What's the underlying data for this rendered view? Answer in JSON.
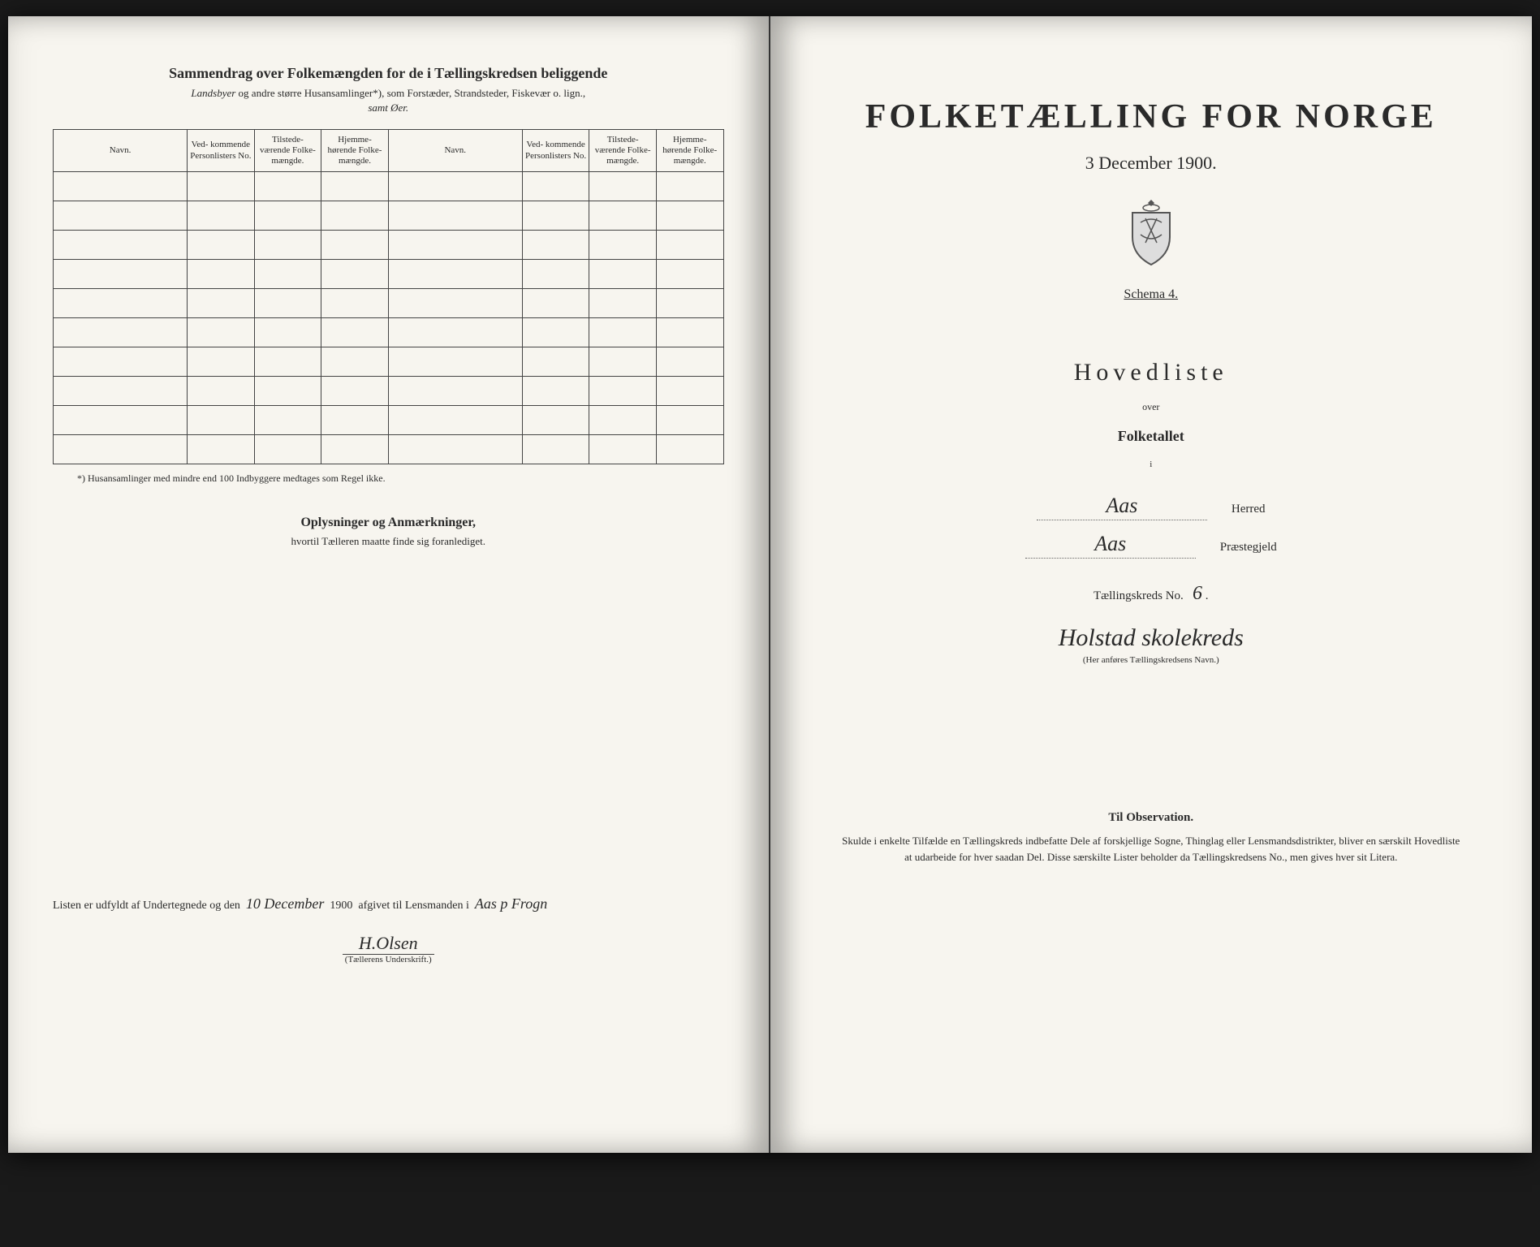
{
  "left": {
    "title": "Sammendrag over Folkemængden for de i Tællingskredsen beliggende",
    "subtitle_prefix_italic": "Landsbyer",
    "subtitle_rest": " og andre større Husansamlinger*), som Forstæder, Strandsteder, Fiskevær o. lign.,",
    "subtitle2": "samt Øer.",
    "columns": {
      "navn": "Navn.",
      "ved": "Ved-\nkommende\nPersonlisters\nNo.",
      "tilstede": "Tilstede-\nværende\nFolke-\nmængde.",
      "hjemme": "Hjemme-\nhørende\nFolke-\nmængde."
    },
    "row_count": 10,
    "footnote": "*) Husansamlinger med mindre end 100 Indbyggere medtages som Regel ikke.",
    "oplys_title": "Oplysninger og Anmærkninger,",
    "oplys_sub": "hvortil Tælleren maatte finde sig foranlediget.",
    "listen_prefix": "Listen er udfyldt af Undertegnede og den",
    "listen_date_hand": "10 December",
    "listen_year": "1900",
    "listen_mid": "afgivet til Lensmanden i",
    "listen_place_hand": "Aas p Frogn",
    "signature": "H.Olsen",
    "sig_label": "(Tællerens Underskrift.)"
  },
  "right": {
    "main_title": "FOLKETÆLLING FOR NORGE",
    "date": "3 December 1900.",
    "schema": "Schema 4.",
    "hovedliste": "Hovedliste",
    "over": "over",
    "folketallet": "Folketallet",
    "i": "i",
    "herred_value": "Aas",
    "herred_label": "Herred",
    "praeste_value": "Aas",
    "praeste_label": "Præstegjeld",
    "kreds_label": "Tællingskreds No.",
    "kreds_no": "6",
    "kreds_name": "Holstad skolekreds",
    "kreds_note": "(Her anføres Tællingskredsens Navn.)",
    "obs_title": "Til Observation.",
    "obs_text": "Skulde i enkelte Tilfælde en Tællingskreds indbefatte Dele af forskjellige Sogne, Thinglag eller Lensmandsdistrikter, bliver en særskilt Hovedliste at udarbeide for hver saadan Del. Disse særskilte Lister beholder da Tællingskredsens No., men gives hver sit Litera."
  },
  "colors": {
    "paper": "#f7f5ef",
    "ink": "#2a2a2a",
    "background": "#1a1a1a"
  }
}
